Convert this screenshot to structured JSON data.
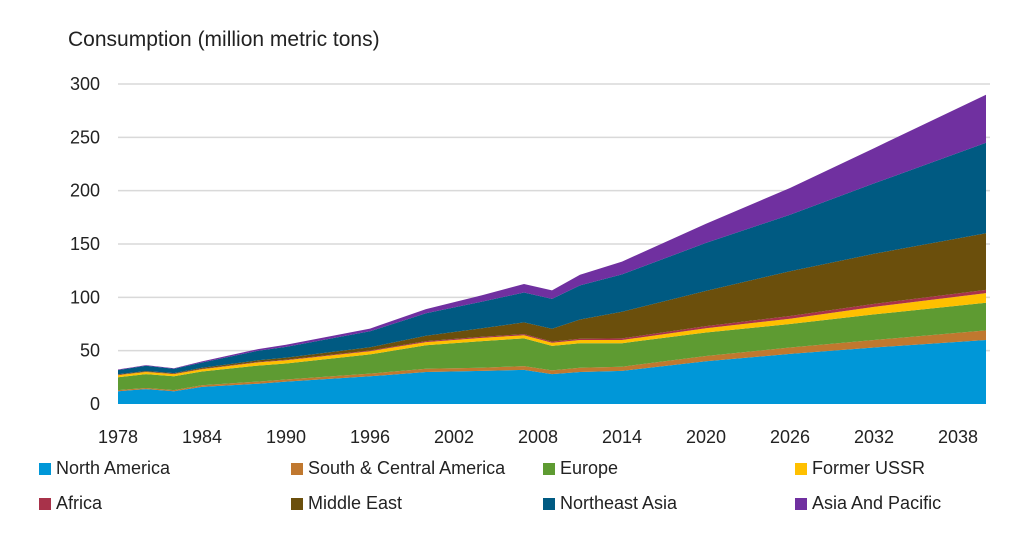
{
  "chart_data": {
    "type": "area",
    "stacked": true,
    "title": "",
    "ylabel": "Consumption (million metric tons)",
    "xlabel": "",
    "ylim": [
      0,
      300
    ],
    "xlim": [
      1978,
      2040
    ],
    "yticks": [
      0,
      50,
      100,
      150,
      200,
      250,
      300
    ],
    "xticks": [
      1978,
      1984,
      1990,
      1996,
      2002,
      2008,
      2014,
      2020,
      2026,
      2032,
      2038
    ],
    "grid": "horizontal",
    "legend_position": "bottom",
    "x": [
      1978,
      1980,
      1982,
      1984,
      1988,
      1990,
      1996,
      2000,
      2004,
      2007,
      2009,
      2011,
      2014,
      2020,
      2026,
      2032,
      2040
    ],
    "series": [
      {
        "name": "North America",
        "color": "#0097D8",
        "values": [
          12,
          14,
          12,
          16,
          19,
          21,
          26,
          30,
          31,
          32,
          28,
          30,
          31,
          40,
          47,
          53,
          60
        ]
      },
      {
        "name": "South & Central America",
        "color": "#C0782F",
        "values": [
          1,
          1,
          1,
          1.5,
          2,
          2,
          2.5,
          3,
          3,
          3.5,
          3.5,
          4,
          4,
          5,
          6,
          7,
          9
        ]
      },
      {
        "name": "Europe",
        "color": "#5E9B32",
        "values": [
          12,
          13,
          13,
          13,
          15,
          15,
          18,
          22,
          25,
          26,
          23,
          23,
          22,
          22,
          22,
          24,
          26
        ]
      },
      {
        "name": "Former USSR",
        "color": "#FFC000",
        "values": [
          2,
          2,
          2,
          2,
          3,
          3,
          3,
          3,
          3,
          3,
          3,
          3,
          3,
          4,
          5,
          7,
          9
        ]
      },
      {
        "name": "Africa",
        "color": "#A8324A",
        "values": [
          0.3,
          0.3,
          0.3,
          0.4,
          0.5,
          0.5,
          0.7,
          1,
          1,
          1,
          1,
          1.2,
          1.5,
          2,
          2.5,
          2.8,
          3
        ]
      },
      {
        "name": "Middle East",
        "color": "#6B4F0C",
        "values": [
          0.5,
          0.6,
          0.7,
          1,
          1.5,
          2,
          3,
          5,
          8,
          11,
          12,
          18,
          25,
          33,
          42,
          47,
          53
        ]
      },
      {
        "name": "Northeast Asia",
        "color": "#005A82",
        "values": [
          4,
          5,
          4,
          5,
          9,
          10,
          15,
          21,
          25,
          28,
          28,
          32,
          35,
          45,
          53,
          66,
          85
        ]
      },
      {
        "name": "Asia And Pacific",
        "color": "#7030A0",
        "values": [
          0.5,
          0.6,
          0.6,
          1,
          1.5,
          2,
          2.5,
          4,
          6,
          8,
          8,
          10,
          12,
          18,
          25,
          33,
          45
        ]
      }
    ]
  }
}
